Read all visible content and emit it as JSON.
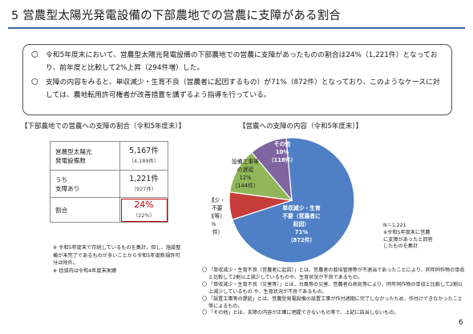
{
  "title": "5  営農型太陽光発電設備の下部農地での営農に支障がある割合",
  "summary": [
    "令和5年度末において、営農型太陽光発電設備の下部農地での営農に支障があったものの割合は24%（1,221件）となっており、前年度と比較して2%上昇（294件増）した。",
    "支障の内容をみると、単収減少・生育不良（営農者に起因するもの）が71%（872件）となっており、このようなケースに対しては、農地転用許可権者が改善措置を講ずるよう指導を行っている。"
  ],
  "summary_bullet": "〇",
  "table_caption": "【下部農地での営農への支障の割合（令和5年度末）】",
  "table": [
    {
      "label1": "営農型太陽光",
      "label2": "発電設備数",
      "value": "5,167件",
      "sub": "（4,189件）"
    },
    {
      "label1": "うち",
      "label2": "支障あり",
      "value": "1,221件",
      "sub": "（927件）"
    },
    {
      "label1": "割合",
      "label2": "",
      "value": "24%",
      "sub": "（22%）"
    }
  ],
  "table_notes": [
    "※ 令和5年度末で存続しているものを集計。但し、施設整備が未完了であるものが多いことから令和5年度新規許可分は除外。",
    "※ 括弧内は令和4年度末実績"
  ],
  "pie_caption": "【営農への支障の内容（令和5年度末）】",
  "chart_data": {
    "type": "pie",
    "colors": {
      "yield": "#4f7fc4",
      "disaster": "#c63d39",
      "delay": "#92b75a",
      "other": "#8064a2"
    },
    "slices": [
      {
        "key": "yield",
        "lines": [
          "単収減少・生育",
          "不要（営農者に",
          "起因）",
          "71%",
          "（872件）"
        ],
        "value": 872,
        "percent": 71
      },
      {
        "key": "disaster",
        "lines": [
          "単収減少・",
          "生育不要",
          "（災害等）",
          "7%",
          "（87件）"
        ],
        "value": 87,
        "percent": 7
      },
      {
        "key": "delay",
        "lines": [
          "設備工事等",
          "の遅延",
          "12%",
          "（144件）"
        ],
        "value": 144,
        "percent": 12
      },
      {
        "key": "other",
        "lines": [
          "その他",
          "10%",
          "（118件）"
        ],
        "value": 118,
        "percent": 10
      }
    ]
  },
  "pie_note": [
    "N＝1,221",
    "※令和5年度末に営農",
    "に支障があったと回答",
    "したものを集計"
  ],
  "definitions": [
    "「単収減少・生育不良（営農者に起因）」とは、営農者の栽培管理等が不適当であったことにより、同年同作物の単収と比較して2割以上減少しているものや、生育状況が不良であるもの。",
    "「単収減少・生育不良（災害等）」とは、台風等の災害、営農者の病気等により、同年同作物の単収と比較して2割以上減少しているもの や、生育状況が不良であるもの。",
    "「設置工事等の遅延」とは、営農型発電設備の設置工事が作付適期に完了しなかったため、作付けできなかったこと等によるもの。",
    "「その他」とは、支障の内容が正確に把握できないもの等で、上記に該当しないもの。"
  ],
  "definitions_bullet": "〇",
  "page_number": "6"
}
